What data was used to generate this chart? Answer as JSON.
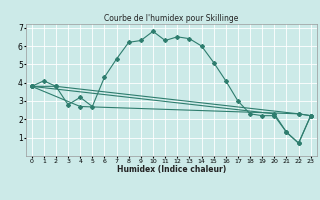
{
  "title": "Courbe de l'humidex pour Skillinge",
  "xlabel": "Humidex (Indice chaleur)",
  "bg_color": "#cceae8",
  "grid_color": "#ffffff",
  "line_color": "#2e7d6e",
  "xlim": [
    -0.5,
    23.5
  ],
  "ylim": [
    0,
    7.2
  ],
  "xtick_labels": [
    "0",
    "1",
    "2",
    "3",
    "4",
    "5",
    "6",
    "7",
    "8",
    "9",
    "10",
    "11",
    "12",
    "13",
    "14",
    "15",
    "16",
    "17",
    "18",
    "19",
    "20",
    "21",
    "22",
    "23"
  ],
  "yticks": [
    1,
    2,
    3,
    4,
    5,
    6,
    7
  ],
  "series1_x": [
    0,
    1,
    2,
    3,
    4,
    5,
    6,
    7,
    8,
    9,
    10,
    11,
    12,
    13,
    14,
    15,
    16,
    17,
    18,
    19,
    20,
    21,
    22,
    23
  ],
  "series1_y": [
    3.8,
    4.1,
    3.8,
    2.8,
    3.2,
    2.7,
    4.3,
    5.3,
    6.2,
    6.3,
    6.8,
    6.3,
    6.5,
    6.4,
    6.0,
    5.1,
    4.1,
    3.0,
    2.3,
    2.2,
    2.2,
    1.3,
    0.7,
    2.2
  ],
  "series2_x": [
    0,
    2,
    22,
    23
  ],
  "series2_y": [
    3.8,
    3.8,
    2.3,
    2.2
  ],
  "series3_x": [
    0,
    4,
    22,
    23
  ],
  "series3_y": [
    3.8,
    2.7,
    2.3,
    2.2
  ],
  "series4_x": [
    0,
    20,
    21,
    22,
    23
  ],
  "series4_y": [
    3.8,
    2.3,
    1.3,
    0.7,
    2.2
  ]
}
